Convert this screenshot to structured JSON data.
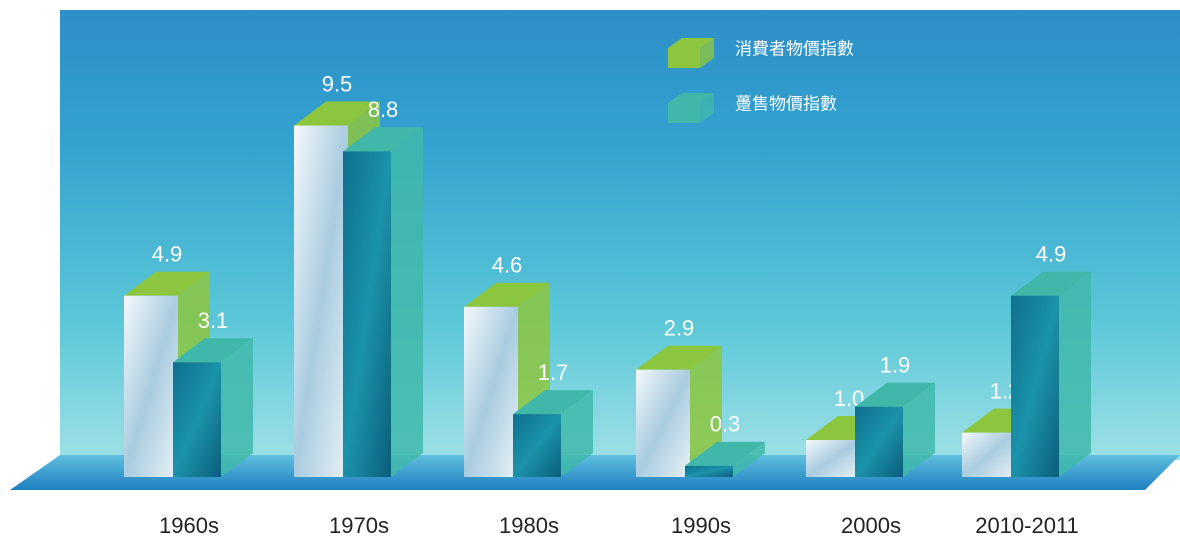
{
  "chart_data": {
    "type": "bar3d",
    "categories": [
      "1960s",
      "1970s",
      "1980s",
      "1990s",
      "2000s",
      "2010-2011"
    ],
    "series": [
      {
        "name": "消費者物價指數",
        "color": "#8cc63f",
        "values": [
          4.9,
          9.5,
          4.6,
          2.9,
          1.0,
          1.2
        ],
        "value_labels": [
          "4.9",
          "9.5",
          "4.6",
          "2.9",
          "1.0",
          "1.2"
        ]
      },
      {
        "name": "躉售物價指數",
        "color": "#3fb8aa",
        "values": [
          3.1,
          8.8,
          1.7,
          0.3,
          1.9,
          4.9
        ]
      }
    ]
  }
}
